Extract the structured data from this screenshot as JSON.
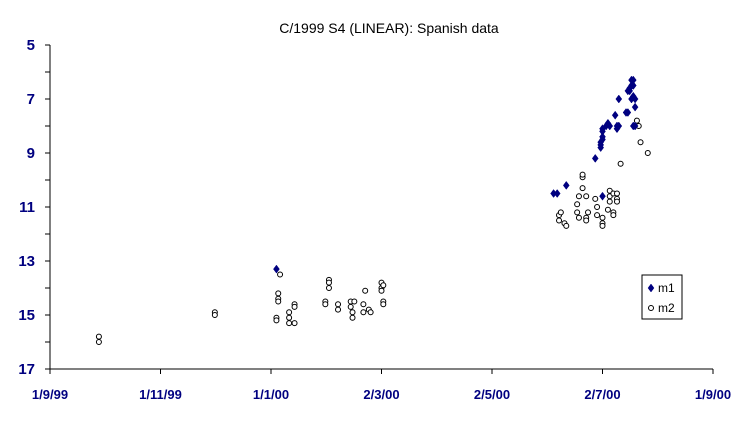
{
  "chart_data": {
    "type": "scatter",
    "title": "C/1999 S4 (LINEAR): Spanish data",
    "xlabel": "",
    "ylabel": "",
    "x_axis": {
      "type": "date",
      "range": [
        "1999-09-01",
        "2000-09-01"
      ],
      "tick_labels": [
        "1/9/99",
        "1/11/99",
        "1/1/00",
        "2/3/00",
        "2/5/00",
        "2/7/00",
        "1/9/00"
      ],
      "tick_dates": [
        "1999-09-01",
        "1999-11-01",
        "2000-01-01",
        "2000-03-02",
        "2000-05-02",
        "2000-07-02",
        "2000-09-01"
      ]
    },
    "y_axis": {
      "range": [
        5,
        17
      ],
      "reversed": true,
      "tick_labels": [
        "5",
        "7",
        "9",
        "11",
        "13",
        "15",
        "17"
      ],
      "major_step": 2,
      "minor_step": 1
    },
    "grid": false,
    "legend": {
      "position": "right",
      "entries": [
        "m1",
        "m2"
      ]
    },
    "series": [
      {
        "name": "m1",
        "marker": "filled-diamond",
        "color": "#000080",
        "points": [
          [
            "2000-01-04",
            13.3
          ],
          [
            "2000-06-05",
            10.5
          ],
          [
            "2000-06-07",
            10.5
          ],
          [
            "2000-06-12",
            10.2
          ],
          [
            "2000-06-28",
            9.2
          ],
          [
            "2000-07-01",
            8.8
          ],
          [
            "2000-07-01",
            8.7
          ],
          [
            "2000-07-01",
            8.6
          ],
          [
            "2000-07-02",
            8.5
          ],
          [
            "2000-07-02",
            8.4
          ],
          [
            "2000-07-02",
            8.2
          ],
          [
            "2000-07-02",
            8.1
          ],
          [
            "2000-07-02",
            10.6
          ],
          [
            "2000-07-04",
            8.0
          ],
          [
            "2000-07-05",
            7.9
          ],
          [
            "2000-07-06",
            8.0
          ],
          [
            "2000-07-09",
            7.6
          ],
          [
            "2000-07-10",
            8.0
          ],
          [
            "2000-07-10",
            8.1
          ],
          [
            "2000-07-11",
            7.0
          ],
          [
            "2000-07-11",
            8.0
          ],
          [
            "2000-07-15",
            7.5
          ],
          [
            "2000-07-16",
            7.5
          ],
          [
            "2000-07-16",
            6.7
          ],
          [
            "2000-07-17",
            6.6
          ],
          [
            "2000-07-17",
            6.7
          ],
          [
            "2000-07-18",
            6.5
          ],
          [
            "2000-07-18",
            6.3
          ],
          [
            "2000-07-18",
            7.0
          ],
          [
            "2000-07-19",
            6.3
          ],
          [
            "2000-07-19",
            6.5
          ],
          [
            "2000-07-19",
            6.9
          ],
          [
            "2000-07-19",
            8.0
          ],
          [
            "2000-07-20",
            7.3
          ],
          [
            "2000-07-20",
            7.0
          ],
          [
            "2000-07-20",
            8.0
          ]
        ]
      },
      {
        "name": "m2",
        "marker": "open-circle",
        "color": "#000000",
        "points": [
          [
            "1999-09-28",
            15.8
          ],
          [
            "1999-09-28",
            16.0
          ],
          [
            "1999-12-01",
            14.9
          ],
          [
            "1999-12-01",
            15.0
          ],
          [
            "2000-01-04",
            15.1
          ],
          [
            "2000-01-04",
            15.2
          ],
          [
            "2000-01-05",
            14.2
          ],
          [
            "2000-01-05",
            14.4
          ],
          [
            "2000-01-05",
            14.5
          ],
          [
            "2000-01-06",
            13.5
          ],
          [
            "2000-01-11",
            14.9
          ],
          [
            "2000-01-11",
            15.1
          ],
          [
            "2000-01-11",
            15.3
          ],
          [
            "2000-01-14",
            14.6
          ],
          [
            "2000-01-14",
            14.7
          ],
          [
            "2000-01-14",
            15.3
          ],
          [
            "2000-01-31",
            14.5
          ],
          [
            "2000-01-31",
            14.6
          ],
          [
            "2000-02-02",
            13.7
          ],
          [
            "2000-02-02",
            13.8
          ],
          [
            "2000-02-02",
            14.0
          ],
          [
            "2000-02-07",
            14.6
          ],
          [
            "2000-02-07",
            14.8
          ],
          [
            "2000-02-14",
            14.5
          ],
          [
            "2000-02-14",
            14.7
          ],
          [
            "2000-02-15",
            14.9
          ],
          [
            "2000-02-15",
            15.1
          ],
          [
            "2000-02-16",
            14.5
          ],
          [
            "2000-02-21",
            14.6
          ],
          [
            "2000-02-21",
            14.9
          ],
          [
            "2000-02-22",
            14.1
          ],
          [
            "2000-02-24",
            14.8
          ],
          [
            "2000-02-25",
            14.9
          ],
          [
            "2000-03-02",
            13.8
          ],
          [
            "2000-03-02",
            14.0
          ],
          [
            "2000-03-02",
            14.1
          ],
          [
            "2000-03-03",
            13.9
          ],
          [
            "2000-03-03",
            14.5
          ],
          [
            "2000-03-03",
            14.6
          ],
          [
            "2000-06-08",
            11.5
          ],
          [
            "2000-06-08",
            11.3
          ],
          [
            "2000-06-09",
            11.2
          ],
          [
            "2000-06-11",
            11.6
          ],
          [
            "2000-06-12",
            11.7
          ],
          [
            "2000-06-18",
            10.9
          ],
          [
            "2000-06-18",
            11.2
          ],
          [
            "2000-06-19",
            10.6
          ],
          [
            "2000-06-19",
            11.4
          ],
          [
            "2000-06-21",
            10.3
          ],
          [
            "2000-06-21",
            9.9
          ],
          [
            "2000-06-21",
            9.8
          ],
          [
            "2000-06-23",
            10.6
          ],
          [
            "2000-06-23",
            11.4
          ],
          [
            "2000-06-23",
            11.5
          ],
          [
            "2000-06-24",
            11.2
          ],
          [
            "2000-06-28",
            10.7
          ],
          [
            "2000-06-29",
            11.0
          ],
          [
            "2000-06-29",
            11.3
          ],
          [
            "2000-07-02",
            11.4
          ],
          [
            "2000-07-02",
            11.6
          ],
          [
            "2000-07-02",
            11.7
          ],
          [
            "2000-07-05",
            11.1
          ],
          [
            "2000-07-06",
            10.4
          ],
          [
            "2000-07-06",
            10.6
          ],
          [
            "2000-07-06",
            10.8
          ],
          [
            "2000-07-08",
            10.5
          ],
          [
            "2000-07-08",
            11.2
          ],
          [
            "2000-07-08",
            11.3
          ],
          [
            "2000-07-10",
            10.5
          ],
          [
            "2000-07-10",
            10.7
          ],
          [
            "2000-07-10",
            10.8
          ],
          [
            "2000-07-12",
            9.4
          ],
          [
            "2000-07-21",
            7.8
          ],
          [
            "2000-07-22",
            8.0
          ],
          [
            "2000-07-23",
            8.6
          ],
          [
            "2000-07-27",
            9.0
          ]
        ]
      }
    ]
  }
}
